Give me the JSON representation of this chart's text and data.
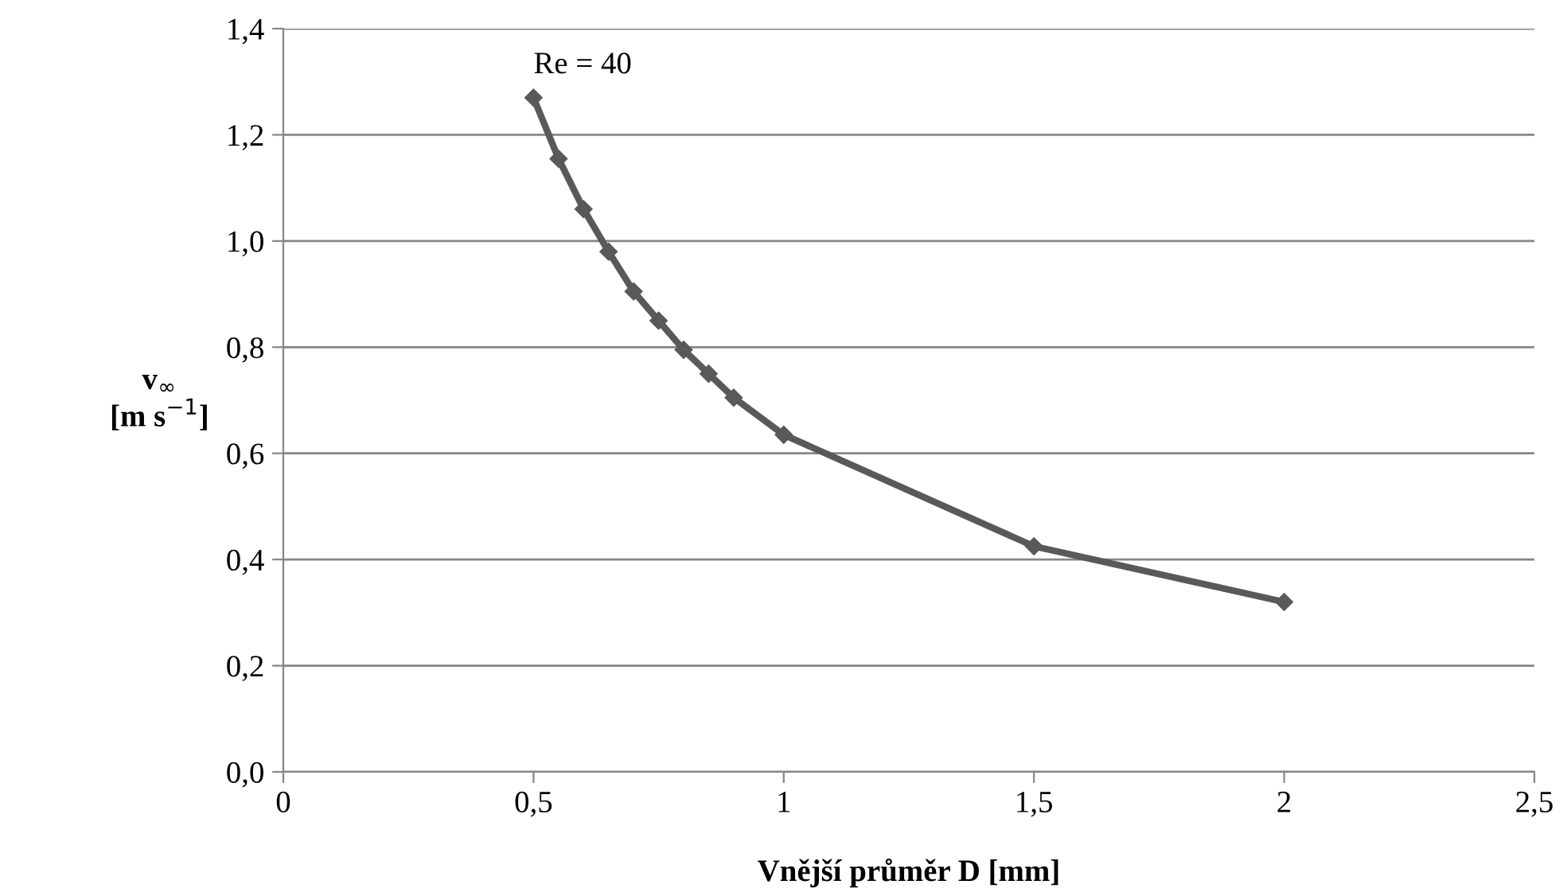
{
  "chart_data": {
    "type": "line",
    "xlabel": "Vnější průměr D [mm]",
    "ylabel": "v$_{∞}$\n[m s$^{−1}$]",
    "annotations": [
      "Re = 40"
    ],
    "series": [
      {
        "color": "#595959",
        "x": [
          0.5,
          0.55,
          0.6,
          0.65,
          0.7,
          0.75,
          0.8,
          0.85,
          0.9,
          1,
          1.5,
          2
        ],
        "values": [
          1.27,
          1.155,
          1.06,
          0.98,
          0.905,
          0.85,
          0.795,
          0.75,
          0.705,
          0.635,
          0.425,
          0.32
        ]
      }
    ],
    "xlim": [
      0,
      2.5
    ],
    "xticks": [
      0,
      {
        "value": 0.5,
        "label": "0,5"
      },
      1,
      {
        "value": 1.5,
        "label": "1,5"
      },
      2,
      {
        "value": 2.5,
        "label": "2,5"
      }
    ],
    "ylim": [
      0,
      1.4
    ],
    "yticks": [
      {
        "value": 0,
        "label": "0,0"
      },
      {
        "value": 0.2,
        "label": "0,2"
      },
      {
        "value": 0.4,
        "label": "0,4"
      },
      {
        "value": 0.6,
        "label": "0,6"
      },
      {
        "value": 0.8,
        "label": "0,8"
      },
      {
        "value": 1.0,
        "label": "1,0"
      },
      {
        "value": 1.2,
        "label": "1,2"
      },
      {
        "value": 1.4,
        "label": "1,4"
      }
    ],
    "grid": "y",
    "marker": "diamond",
    "line_style": "solid",
    "legend": false
  }
}
